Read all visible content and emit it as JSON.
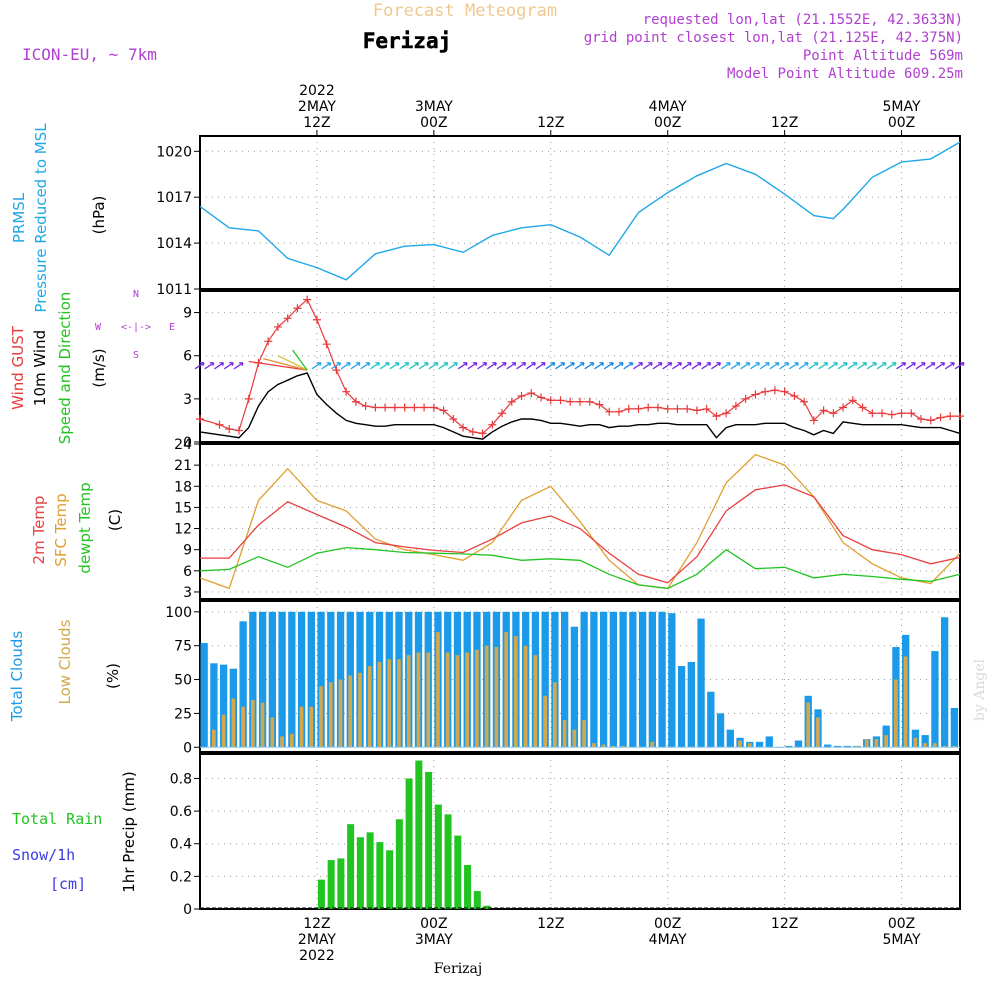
{
  "header": {
    "main_title": "Forecast Meteogram",
    "location": "Ferizaj",
    "model": "ICON-EU, ~ 7km",
    "requested": "requested lon,lat (21.1552E, 42.3633N)",
    "grid_point": "grid point closest lon,lat (21.125E, 42.375N)",
    "point_altitude": "Point Altitude 569m",
    "model_altitude": "Model Point Altitude 609.25m",
    "footer_location": "Ferizaj",
    "watermark": "by Angel"
  },
  "time_axis": {
    "top_labels": [
      {
        "lines": [
          "2022",
          "2MAY",
          "12Z"
        ],
        "hour": 12
      },
      {
        "lines": [
          "3MAY",
          "00Z"
        ],
        "hour": 24
      },
      {
        "lines": [
          "12Z"
        ],
        "hour": 36
      },
      {
        "lines": [
          "4MAY",
          "00Z"
        ],
        "hour": 48
      },
      {
        "lines": [
          "12Z"
        ],
        "hour": 60
      },
      {
        "lines": [
          "5MAY",
          "00Z"
        ],
        "hour": 72
      }
    ],
    "bottom_labels": [
      {
        "lines": [
          "12Z",
          "2MAY",
          "2022"
        ],
        "hour": 12
      },
      {
        "lines": [
          "00Z",
          "3MAY"
        ],
        "hour": 24
      },
      {
        "lines": [
          "12Z"
        ],
        "hour": 36
      },
      {
        "lines": [
          "00Z",
          "4MAY"
        ],
        "hour": 48
      },
      {
        "lines": [
          "12Z"
        ],
        "hour": 60
      },
      {
        "lines": [
          "00Z",
          "5MAY"
        ],
        "hour": 72
      }
    ]
  },
  "panels": {
    "pressure": {
      "label_lines": [
        "PRMSL",
        "Pressure Reduced to MSL"
      ],
      "unit": "(hPa)",
      "yticks": [
        "1011",
        "1014",
        "1017",
        "1020"
      ]
    },
    "wind": {
      "label_lines": [
        "Wind GUST",
        "10m Wind",
        "Speed and Direction"
      ],
      "unit": "(m/s)",
      "yticks": [
        "0",
        "3",
        "6",
        "9"
      ],
      "compass": {
        "n": "N",
        "s": "S",
        "w": "W",
        "e": "E",
        "arrows": "<-|->"
      }
    },
    "temperature": {
      "label_lines": [
        "2m Temp",
        "SFC Temp",
        "dewpt Temp"
      ],
      "unit": "(C)",
      "yticks": [
        "3",
        "6",
        "9",
        "12",
        "15",
        "18",
        "21",
        "24"
      ]
    },
    "clouds": {
      "label_lines": [
        "Total Clouds",
        "Low Clouds"
      ],
      "unit": "(%)",
      "yticks": [
        "0",
        "25",
        "50",
        "75",
        "100"
      ]
    },
    "precip": {
      "label_lines": [
        "Total  Rain",
        "Snow/1h",
        "[cm]"
      ],
      "unit": "1hr Precip (mm)",
      "yticks": [
        "0",
        "0.2",
        "0.4",
        "0.6",
        "0.8"
      ]
    }
  },
  "colors": {
    "pressure": "#1fa8e8",
    "gust": "#e83a3a",
    "wind": "#000000",
    "t2m": "#e84040",
    "sfc": "#e0a030",
    "dew": "#22c422",
    "total_cloud": "#1a9ae8",
    "low_cloud": "#d4a84a",
    "rain": "#22c422",
    "snow": "#3a3ae8",
    "header_orange": "#f0c890",
    "header_purple": "#b040d0"
  },
  "chart_data": [
    {
      "type": "line",
      "name": "PRMSL",
      "x_unit": "hours from 2022-05-02 00Z",
      "x": [
        0,
        3,
        6,
        9,
        12,
        15,
        18,
        21,
        24,
        27,
        30,
        33,
        36,
        39,
        42,
        45,
        48,
        51,
        54,
        57,
        60,
        63,
        65,
        66,
        69,
        72,
        75,
        78
      ],
      "y": [
        1016.4,
        1015.0,
        1014.8,
        1013.0,
        1012.4,
        1011.6,
        1013.3,
        1013.8,
        1013.9,
        1013.4,
        1014.5,
        1015.0,
        1015.2,
        1014.4,
        1013.2,
        1016.0,
        1017.3,
        1018.4,
        1019.2,
        1018.5,
        1017.2,
        1015.8,
        1015.6,
        1016.2,
        1018.3,
        1019.3,
        1019.5,
        1020.6
      ],
      "ylim": [
        1011,
        1021
      ]
    },
    {
      "type": "line",
      "name": "Wind",
      "x_unit": "hours from 2022-05-02 00Z",
      "x": [
        0,
        2,
        3,
        4,
        5,
        6,
        7,
        8,
        9,
        10,
        11,
        12,
        13,
        14,
        15,
        16,
        17,
        18,
        19,
        20,
        21,
        22,
        23,
        24,
        25,
        26,
        27,
        28,
        29,
        30,
        31,
        32,
        33,
        34,
        35,
        36,
        37,
        38,
        39,
        40,
        41,
        42,
        43,
        44,
        45,
        46,
        47,
        48,
        49,
        50,
        51,
        52,
        53,
        54,
        55,
        56,
        57,
        58,
        59,
        60,
        61,
        62,
        63,
        64,
        65,
        66,
        67,
        68,
        69,
        70,
        71,
        72,
        73,
        74,
        75,
        76,
        77,
        78
      ],
      "gust": [
        1.6,
        1.2,
        0.9,
        0.8,
        3.0,
        5.5,
        7.0,
        8.0,
        8.6,
        9.3,
        9.9,
        8.5,
        6.8,
        5.0,
        3.5,
        2.8,
        2.5,
        2.4,
        2.4,
        2.4,
        2.4,
        2.4,
        2.4,
        2.4,
        2.2,
        1.6,
        1.0,
        0.7,
        0.6,
        1.2,
        2.0,
        2.8,
        3.2,
        3.4,
        3.1,
        2.9,
        2.9,
        2.8,
        2.8,
        2.8,
        2.6,
        2.1,
        2.1,
        2.3,
        2.3,
        2.4,
        2.4,
        2.3,
        2.3,
        2.3,
        2.2,
        2.3,
        1.8,
        2.0,
        2.5,
        3.0,
        3.3,
        3.5,
        3.6,
        3.5,
        3.2,
        2.8,
        1.5,
        2.2,
        2.0,
        2.4,
        2.9,
        2.4,
        2.0,
        2.0,
        1.9,
        2.0,
        2.0,
        1.6,
        1.5,
        1.7,
        1.8,
        1.8
      ],
      "speed": [
        0.7,
        0.5,
        0.4,
        0.3,
        1.0,
        2.5,
        3.5,
        4.0,
        4.3,
        4.6,
        4.8,
        3.3,
        2.6,
        2.0,
        1.5,
        1.3,
        1.2,
        1.1,
        1.1,
        1.2,
        1.2,
        1.2,
        1.2,
        1.2,
        1.0,
        0.7,
        0.4,
        0.3,
        0.2,
        0.7,
        1.1,
        1.4,
        1.6,
        1.6,
        1.5,
        1.3,
        1.3,
        1.2,
        1.1,
        1.2,
        1.2,
        1.0,
        1.1,
        1.1,
        1.2,
        1.2,
        1.3,
        1.3,
        1.2,
        1.2,
        1.2,
        1.2,
        0.3,
        1.0,
        1.2,
        1.2,
        1.2,
        1.3,
        1.3,
        1.3,
        1.0,
        0.8,
        0.5,
        0.8,
        0.6,
        1.4,
        1.3,
        1.2,
        1.2,
        1.2,
        1.2,
        1.2,
        1.1,
        1.0,
        1.0,
        1.0,
        0.8,
        0.6
      ],
      "ylim": [
        0,
        10.5
      ]
    },
    {
      "type": "line",
      "name": "Temperature",
      "x_unit": "hours from 2022-05-02 00Z",
      "x": [
        0,
        3,
        6,
        9,
        12,
        15,
        18,
        21,
        24,
        27,
        30,
        33,
        36,
        39,
        42,
        45,
        48,
        51,
        54,
        57,
        60,
        63,
        66,
        69,
        72,
        75,
        78
      ],
      "t2m": [
        7.8,
        7.8,
        12.5,
        15.8,
        14.0,
        12.2,
        10.0,
        9.4,
        8.9,
        8.6,
        10.5,
        12.8,
        13.8,
        12.0,
        8.5,
        5.5,
        4.3,
        8.0,
        14.5,
        17.5,
        18.2,
        16.5,
        11.0,
        9.0,
        8.3,
        7.0,
        7.9
      ],
      "sfc": [
        5.0,
        3.5,
        16.0,
        20.5,
        16.0,
        14.5,
        10.5,
        9.0,
        8.3,
        7.5,
        10.0,
        16.0,
        18.0,
        13.0,
        7.5,
        4.0,
        3.5,
        10.0,
        18.5,
        22.5,
        21.0,
        16.5,
        10.0,
        7.0,
        5.0,
        4.2,
        8.5
      ],
      "dew": [
        6.0,
        6.2,
        8.0,
        6.5,
        8.5,
        9.3,
        9.0,
        8.6,
        8.5,
        8.4,
        8.2,
        7.5,
        7.7,
        7.5,
        5.5,
        4.0,
        3.5,
        5.5,
        9.0,
        6.3,
        6.5,
        5.0,
        5.5,
        5.2,
        4.8,
        4.5,
        5.5
      ],
      "ylim": [
        2,
        24
      ]
    },
    {
      "type": "bar",
      "name": "Clouds",
      "x_unit": "hours from 2022-05-02 00Z",
      "x_start": 0,
      "x_step": 1,
      "total": [
        77,
        62,
        61,
        58,
        93,
        100,
        100,
        100,
        100,
        100,
        100,
        100,
        100,
        100,
        100,
        100,
        100,
        100,
        100,
        100,
        100,
        100,
        100,
        100,
        100,
        100,
        100,
        100,
        100,
        100,
        100,
        100,
        100,
        100,
        100,
        100,
        100,
        100,
        89,
        100,
        100,
        100,
        100,
        100,
        100,
        100,
        100,
        100,
        99,
        60,
        63,
        95,
        41,
        25,
        13,
        7,
        4,
        4,
        8,
        0,
        1,
        5,
        38,
        28,
        2,
        1,
        1,
        1,
        6,
        8,
        16,
        74,
        83,
        13,
        9,
        71,
        96,
        29
      ],
      "low": [
        0,
        13,
        24,
        36,
        30,
        35,
        33,
        22,
        8,
        10,
        30,
        30,
        45,
        48,
        50,
        53,
        55,
        60,
        63,
        65,
        65,
        68,
        70,
        70,
        85,
        70,
        68,
        70,
        72,
        75,
        74,
        85,
        82,
        75,
        68,
        38,
        48,
        20,
        13,
        20,
        3,
        2,
        1,
        1,
        0,
        0,
        4,
        0,
        0,
        0,
        0,
        0,
        0,
        0,
        0,
        5,
        3,
        0,
        0,
        0,
        0,
        0,
        33,
        22,
        0,
        0,
        0,
        1,
        6,
        6,
        9,
        50,
        67,
        7,
        3,
        3,
        1,
        1
      ],
      "ylim": [
        0,
        100
      ]
    },
    {
      "type": "bar",
      "name": "Precip",
      "x_unit": "hours from 2022-05-02 00Z",
      "x_start": 0,
      "x_step": 1,
      "rain": [
        0,
        0,
        0,
        0,
        0,
        0,
        0,
        0,
        0,
        0,
        0,
        0,
        0.18,
        0.3,
        0.31,
        0.52,
        0.44,
        0.47,
        0.41,
        0.36,
        0.55,
        0.8,
        0.91,
        0.84,
        0.64,
        0.58,
        0.45,
        0.27,
        0.11,
        0.02,
        0,
        0,
        0,
        0,
        0,
        0,
        0,
        0,
        0,
        0,
        0,
        0,
        0,
        0,
        0,
        0,
        0,
        0,
        0,
        0,
        0,
        0,
        0,
        0,
        0,
        0,
        0,
        0,
        0,
        0,
        0,
        0,
        0,
        0,
        0,
        0,
        0,
        0,
        0,
        0,
        0,
        0,
        0,
        0,
        0,
        0,
        0,
        0
      ],
      "ylim": [
        0,
        0.95
      ]
    }
  ]
}
